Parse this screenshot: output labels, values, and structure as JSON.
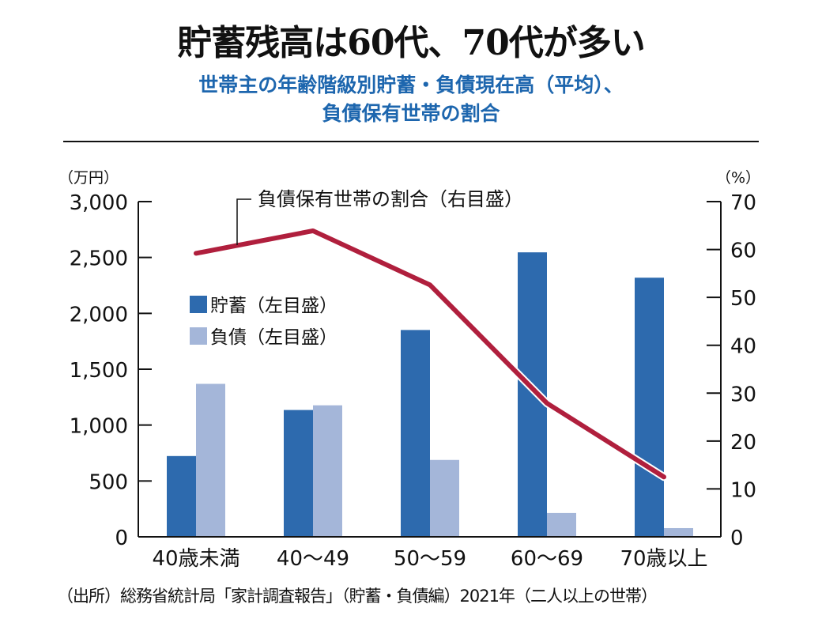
{
  "header": {
    "title": "貯蓄残高は60代、70代が多い",
    "subtitle_line1": "世帯主の年齢階級別貯蓄・負債現在高（平均）、",
    "subtitle_line2": "負債保有世帯の割合"
  },
  "footer": {
    "source": "（出所）総務省統計局「家計調査報告」（貯蓄・負債編）2021年（二人以上の世帯）"
  },
  "colors": {
    "savings": "#2d6aae",
    "debt": "#a4b6d9",
    "ratio_line": "#b01f3d",
    "subtitle": "#1d66ae"
  },
  "chart_data": {
    "type": "bar+line",
    "title": "貯蓄残高は60代、70代が多い",
    "categories": [
      "40歳未満",
      "40～49",
      "50～59",
      "60～69",
      "70歳以上"
    ],
    "left_axis": {
      "unit_label": "（万円）",
      "ylim": [
        0,
        3000
      ],
      "ticks": [
        0,
        500,
        1000,
        1500,
        2000,
        2500,
        3000
      ],
      "tick_labels": [
        "0",
        "500",
        "1,000",
        "1,500",
        "2,000",
        "2,500",
        "3,000"
      ]
    },
    "right_axis": {
      "unit_label": "（%）",
      "ylim": [
        0,
        70
      ],
      "ticks": [
        0,
        10,
        20,
        30,
        40,
        50,
        60,
        70
      ],
      "tick_labels": [
        "0",
        "10",
        "20",
        "30",
        "40",
        "50",
        "60",
        "70"
      ]
    },
    "series": [
      {
        "name": "貯蓄（左目盛）",
        "type": "bar",
        "axis": "left",
        "values": [
          723,
          1135,
          1851,
          2546,
          2319
        ]
      },
      {
        "name": "負債（左目盛）",
        "type": "bar",
        "axis": "left",
        "values": [
          1369,
          1177,
          688,
          213,
          78
        ]
      },
      {
        "name": "負債保有世帯の割合（右目盛）",
        "type": "line",
        "axis": "right",
        "values": [
          59.2,
          63.9,
          52.6,
          27.9,
          12.5
        ]
      }
    ],
    "legend": {
      "savings": "貯蓄（左目盛）",
      "debt": "負債（左目盛）",
      "line": "負債保有世帯の割合（右目盛）"
    },
    "grid": false
  }
}
